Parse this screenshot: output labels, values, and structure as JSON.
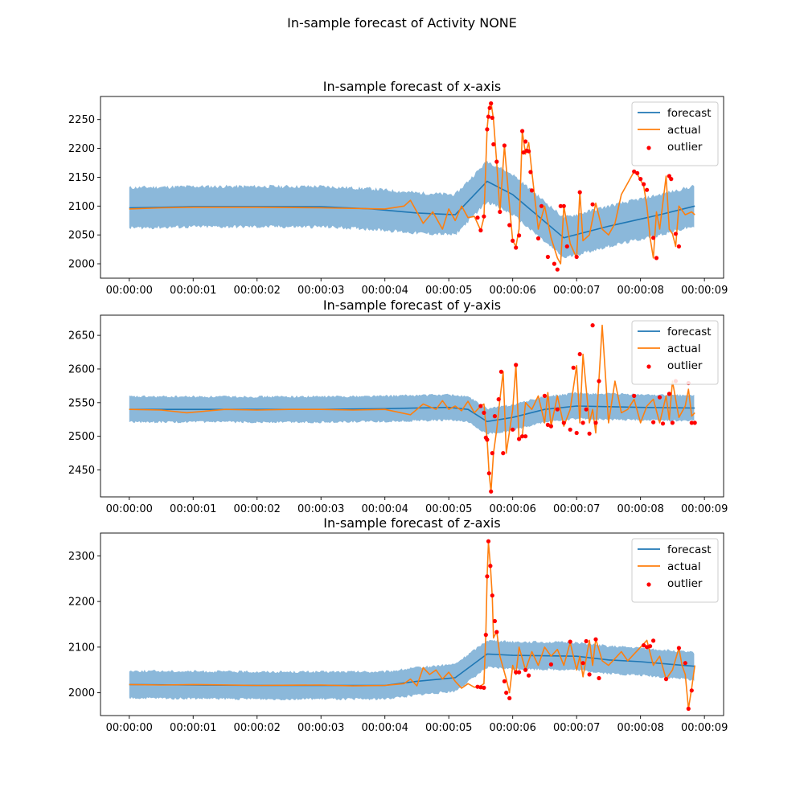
{
  "suptitle": "In-sample forecast of Activity NONE",
  "legend": {
    "forecast": "forecast",
    "actual": "actual",
    "outlier": "outlier"
  },
  "colors": {
    "forecast": "#1f77b4",
    "actual": "#ff7f0e",
    "band": "#8bb8da",
    "outlier": "#ff0000"
  },
  "chart_data": [
    {
      "type": "line",
      "title": "In-sample forecast of x-axis",
      "xlabel": "",
      "ylabel": "",
      "x_ticks": [
        "00:00:00",
        "00:00:01",
        "00:00:02",
        "00:00:03",
        "00:00:04",
        "00:00:05",
        "00:00:06",
        "00:00:07",
        "00:00:08",
        "00:00:09"
      ],
      "xlim": [
        -0.45,
        9.3
      ],
      "ylim": [
        1975,
        2290
      ],
      "y_ticks": [
        2000,
        2050,
        2100,
        2150,
        2200,
        2250
      ],
      "legend_position": "upper right",
      "forecast": {
        "x": [
          0,
          1,
          2,
          3,
          3.8,
          4.5,
          5.1,
          5.6,
          6.0,
          6.8,
          7.5,
          8.3,
          8.85
        ],
        "y": [
          2097,
          2099,
          2099,
          2099,
          2095,
          2088,
          2085,
          2143,
          2120,
          2045,
          2065,
          2085,
          2100
        ]
      },
      "band_halfwidth": 35,
      "actual": {
        "x": [
          0,
          0.5,
          1,
          2,
          3,
          4,
          4.3,
          4.4,
          4.6,
          4.75,
          4.9,
          5.0,
          5.1,
          5.2,
          5.3,
          5.4,
          5.5,
          5.55,
          5.6,
          5.63,
          5.66,
          5.7,
          5.75,
          5.8,
          5.87,
          5.95,
          6.0,
          6.05,
          6.1,
          6.15,
          6.2,
          6.25,
          6.3,
          6.4,
          6.5,
          6.6,
          6.7,
          6.75,
          6.8,
          6.9,
          7.0,
          7.05,
          7.1,
          7.2,
          7.3,
          7.4,
          7.5,
          7.6,
          7.7,
          7.8,
          7.9,
          7.95,
          8.0,
          8.05,
          8.1,
          8.15,
          8.2,
          8.25,
          8.3,
          8.4,
          8.45,
          8.5,
          8.55,
          8.6,
          8.7,
          8.8,
          8.85
        ],
        "y": [
          2095,
          2097,
          2098,
          2098,
          2097,
          2095,
          2100,
          2110,
          2070,
          2090,
          2060,
          2095,
          2075,
          2100,
          2080,
          2082,
          2058,
          2080,
          2235,
          2270,
          2280,
          2250,
          2175,
          2090,
          2205,
          2100,
          2040,
          2030,
          2060,
          2230,
          2190,
          2210,
          2160,
          2060,
          2100,
          2045,
          2010,
          2000,
          2100,
          2035,
          2010,
          2125,
          2040,
          2050,
          2105,
          2060,
          2050,
          2070,
          2120,
          2140,
          2160,
          2155,
          2145,
          2135,
          2100,
          2045,
          2010,
          2090,
          2060,
          2152,
          2060,
          2052,
          2030,
          2100,
          2085,
          2090,
          2085
        ]
      },
      "outliers": {
        "x": [
          5.45,
          5.5,
          5.55,
          5.6,
          5.62,
          5.64,
          5.66,
          5.68,
          5.7,
          5.75,
          5.8,
          5.87,
          5.95,
          6.0,
          6.05,
          6.1,
          6.15,
          6.17,
          6.2,
          6.22,
          6.25,
          6.28,
          6.3,
          6.4,
          6.45,
          6.55,
          6.65,
          6.7,
          6.75,
          6.8,
          6.85,
          7.0,
          7.05,
          7.25,
          7.9,
          7.95,
          8.0,
          8.05,
          8.1,
          8.2,
          8.25,
          8.45,
          8.48,
          8.55,
          8.6
        ],
        "y": [
          2080,
          2058,
          2082,
          2233,
          2255,
          2270,
          2278,
          2253,
          2207,
          2177,
          2090,
          2205,
          2067,
          2040,
          2028,
          2049,
          2230,
          2193,
          2212,
          2196,
          2195,
          2159,
          2127,
          2044,
          2100,
          2012,
          2000,
          1990,
          2100,
          2100,
          2030,
          2012,
          2124,
          2103,
          2160,
          2157,
          2147,
          2138,
          2128,
          2045,
          2010,
          2152,
          2147,
          2052,
          2030
        ]
      }
    },
    {
      "type": "line",
      "title": "In-sample forecast of y-axis",
      "xlabel": "",
      "ylabel": "",
      "x_ticks": [
        "00:00:00",
        "00:00:01",
        "00:00:02",
        "00:00:03",
        "00:00:04",
        "00:00:05",
        "00:00:06",
        "00:00:07",
        "00:00:08",
        "00:00:09"
      ],
      "xlim": [
        -0.45,
        9.3
      ],
      "ylim": [
        2410,
        2680
      ],
      "y_ticks": [
        2450,
        2500,
        2550,
        2600,
        2650
      ],
      "legend_position": "upper right",
      "forecast": {
        "x": [
          0,
          1,
          2,
          3,
          4,
          5.0,
          5.3,
          5.6,
          6.0,
          6.5,
          7.0,
          8.0,
          8.85
        ],
        "y": [
          2540,
          2540,
          2540,
          2540,
          2541,
          2543,
          2540,
          2522,
          2528,
          2540,
          2545,
          2543,
          2542
        ]
      },
      "band_halfwidth": 19,
      "actual": {
        "x": [
          0,
          0.5,
          0.9,
          1.5,
          2,
          2.5,
          3,
          3.5,
          4,
          4.4,
          4.6,
          4.8,
          4.9,
          5.0,
          5.1,
          5.2,
          5.3,
          5.4,
          5.5,
          5.55,
          5.6,
          5.63,
          5.66,
          5.7,
          5.75,
          5.8,
          5.85,
          5.9,
          6.0,
          6.05,
          6.1,
          6.15,
          6.2,
          6.3,
          6.4,
          6.5,
          6.55,
          6.6,
          6.7,
          6.8,
          6.9,
          7.0,
          7.05,
          7.1,
          7.2,
          7.25,
          7.3,
          7.4,
          7.5,
          7.6,
          7.7,
          7.8,
          7.9,
          8.0,
          8.1,
          8.2,
          8.3,
          8.4,
          8.45,
          8.5,
          8.6,
          8.7,
          8.75,
          8.8,
          8.85
        ],
        "y": [
          2540,
          2539,
          2535,
          2540,
          2539,
          2540,
          2540,
          2539,
          2540,
          2532,
          2548,
          2540,
          2553,
          2540,
          2545,
          2538,
          2552,
          2535,
          2545,
          2548,
          2495,
          2445,
          2418,
          2475,
          2510,
          2555,
          2596,
          2475,
          2540,
          2606,
          2495,
          2500,
          2550,
          2540,
          2560,
          2520,
          2565,
          2515,
          2560,
          2515,
          2540,
          2605,
          2520,
          2622,
          2520,
          2540,
          2505,
          2665,
          2520,
          2582,
          2535,
          2540,
          2555,
          2520,
          2545,
          2555,
          2520,
          2560,
          2525,
          2582,
          2528,
          2545,
          2570,
          2530,
          2535
        ]
      },
      "outliers": {
        "x": [
          5.5,
          5.55,
          5.58,
          5.6,
          5.63,
          5.66,
          5.68,
          5.72,
          5.78,
          5.82,
          5.85,
          6.0,
          6.05,
          6.1,
          6.15,
          6.2,
          6.5,
          6.55,
          6.6,
          6.7,
          6.8,
          6.9,
          6.95,
          7.0,
          7.05,
          7.1,
          7.15,
          7.2,
          7.25,
          7.3,
          7.35,
          7.9,
          8.2,
          8.3,
          8.35,
          8.45,
          8.5,
          8.55,
          8.75,
          8.8,
          8.85
        ],
        "y": [
          2545,
          2535,
          2498,
          2495,
          2445,
          2418,
          2475,
          2530,
          2555,
          2596,
          2475,
          2510,
          2606,
          2496,
          2500,
          2500,
          2560,
          2517,
          2515,
          2540,
          2520,
          2510,
          2602,
          2505,
          2622,
          2520,
          2540,
          2504,
          2665,
          2520,
          2582,
          2560,
          2521,
          2558,
          2519,
          2563,
          2520,
          2582,
          2579,
          2520,
          2520
        ]
      }
    },
    {
      "type": "line",
      "title": "In-sample forecast of z-axis",
      "xlabel": "",
      "ylabel": "",
      "x_ticks": [
        "00:00:00",
        "00:00:01",
        "00:00:02",
        "00:00:03",
        "00:00:04",
        "00:00:05",
        "00:00:06",
        "00:00:07",
        "00:00:08",
        "00:00:09"
      ],
      "xlim": [
        -0.45,
        9.3
      ],
      "ylim": [
        1950,
        2350
      ],
      "y_ticks": [
        2000,
        2100,
        2200,
        2300
      ],
      "legend_position": "upper right",
      "forecast": {
        "x": [
          0,
          1,
          2,
          3,
          4,
          4.5,
          5.1,
          5.6,
          6.0,
          7.0,
          7.5,
          8.0,
          8.5,
          8.85
        ],
        "y": [
          2018,
          2017,
          2016,
          2016,
          2016,
          2025,
          2033,
          2085,
          2082,
          2080,
          2072,
          2068,
          2062,
          2058
        ]
      },
      "band_halfwidth": 30,
      "actual": {
        "x": [
          0,
          0.5,
          1,
          2,
          3,
          3.5,
          4,
          4.3,
          4.4,
          4.5,
          4.6,
          4.7,
          4.8,
          4.9,
          5.0,
          5.1,
          5.2,
          5.3,
          5.4,
          5.5,
          5.55,
          5.58,
          5.6,
          5.62,
          5.65,
          5.68,
          5.7,
          5.75,
          5.8,
          5.9,
          5.95,
          6.0,
          6.05,
          6.1,
          6.2,
          6.3,
          6.4,
          6.5,
          6.6,
          6.7,
          6.8,
          6.9,
          7.0,
          7.05,
          7.1,
          7.2,
          7.25,
          7.3,
          7.4,
          7.5,
          7.6,
          7.7,
          7.8,
          7.9,
          8.0,
          8.1,
          8.2,
          8.3,
          8.4,
          8.5,
          8.6,
          8.65,
          8.7,
          8.75,
          8.8,
          8.85
        ],
        "y": [
          2018,
          2017,
          2018,
          2016,
          2017,
          2015,
          2016,
          2020,
          2030,
          2015,
          2055,
          2040,
          2050,
          2030,
          2045,
          2025,
          2010,
          2020,
          2012,
          2015,
          2020,
          2130,
          2255,
          2330,
          2280,
          2210,
          2120,
          2135,
          2080,
          2030,
          2000,
          2060,
          2040,
          2100,
          2050,
          2090,
          2060,
          2100,
          2080,
          2095,
          2060,
          2110,
          2050,
          2080,
          2035,
          2115,
          2060,
          2118,
          2070,
          2060,
          2075,
          2090,
          2070,
          2085,
          2100,
          2115,
          2060,
          2080,
          2030,
          2050,
          2098,
          2060,
          2040,
          1965,
          2010,
          2060
        ]
      },
      "outliers": {
        "x": [
          5.45,
          5.5,
          5.55,
          5.58,
          5.6,
          5.62,
          5.65,
          5.68,
          5.72,
          5.75,
          5.87,
          5.9,
          5.95,
          6.05,
          6.1,
          6.2,
          6.25,
          6.6,
          6.9,
          7.1,
          7.15,
          7.2,
          7.3,
          7.35,
          8.05,
          8.1,
          8.15,
          8.2,
          8.4,
          8.6,
          8.7,
          8.75,
          8.8
        ],
        "y": [
          2013,
          2012,
          2011,
          2127,
          2255,
          2332,
          2278,
          2213,
          2157,
          2133,
          2025,
          2000,
          1988,
          2045,
          2045,
          2050,
          2038,
          2062,
          2112,
          2065,
          2113,
          2040,
          2117,
          2032,
          2104,
          2100,
          2102,
          2114,
          2030,
          2098,
          2065,
          1965,
          2005
        ]
      }
    }
  ]
}
